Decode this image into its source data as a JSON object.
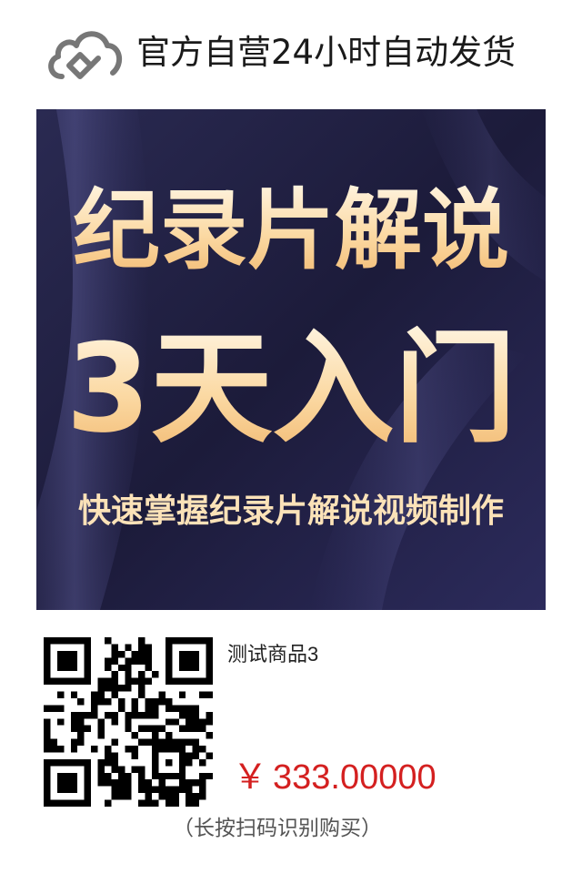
{
  "header": {
    "logo_icon": "cloud-diamond-logo-icon",
    "slogan": "官方自营24小时自动发货"
  },
  "banner": {
    "headline_line1": "纪录片解说",
    "headline_line2": "3天入门",
    "subline": "快速掌握纪录片解说视频制作"
  },
  "product": {
    "name": "测试商品3",
    "currency_symbol": "￥",
    "price": "333.00000",
    "qr_icon": "qr-code-icon",
    "hint": "（长按扫码识别购买）"
  },
  "colors": {
    "price": "#d42020",
    "banner_bg": "#1d1c3b",
    "headline": "#fbd9a3"
  }
}
